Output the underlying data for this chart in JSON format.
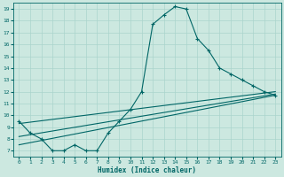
{
  "title": "",
  "xlabel": "Humidex (Indice chaleur)",
  "ylabel": "",
  "background_color": "#cce8e0",
  "line_color": "#006666",
  "grid_color": "#aad4cc",
  "xlim": [
    -0.5,
    23.5
  ],
  "ylim": [
    6.5,
    19.5
  ],
  "xticks": [
    0,
    1,
    2,
    3,
    4,
    5,
    6,
    7,
    8,
    9,
    10,
    11,
    12,
    13,
    14,
    15,
    16,
    17,
    18,
    19,
    20,
    21,
    22,
    23
  ],
  "yticks": [
    7,
    8,
    9,
    10,
    11,
    12,
    13,
    14,
    15,
    16,
    17,
    18,
    19
  ],
  "series_main": {
    "x": [
      0,
      1,
      2,
      3,
      4,
      5,
      6,
      7,
      8,
      9,
      10,
      11,
      12,
      13,
      14,
      15,
      16,
      17,
      18,
      19,
      20,
      21,
      22,
      23
    ],
    "y": [
      9.5,
      8.5,
      8.0,
      7.0,
      7.0,
      7.5,
      7.0,
      7.0,
      8.5,
      9.5,
      10.5,
      12.0,
      17.7,
      18.5,
      19.2,
      19.0,
      16.5,
      15.5,
      14.0,
      13.5,
      13.0,
      12.5,
      12.0,
      11.7
    ]
  },
  "series_lines": [
    {
      "x": [
        0,
        23
      ],
      "y": [
        9.3,
        12.0
      ]
    },
    {
      "x": [
        0,
        23
      ],
      "y": [
        8.2,
        11.8
      ]
    },
    {
      "x": [
        0,
        23
      ],
      "y": [
        7.5,
        11.7
      ]
    }
  ]
}
